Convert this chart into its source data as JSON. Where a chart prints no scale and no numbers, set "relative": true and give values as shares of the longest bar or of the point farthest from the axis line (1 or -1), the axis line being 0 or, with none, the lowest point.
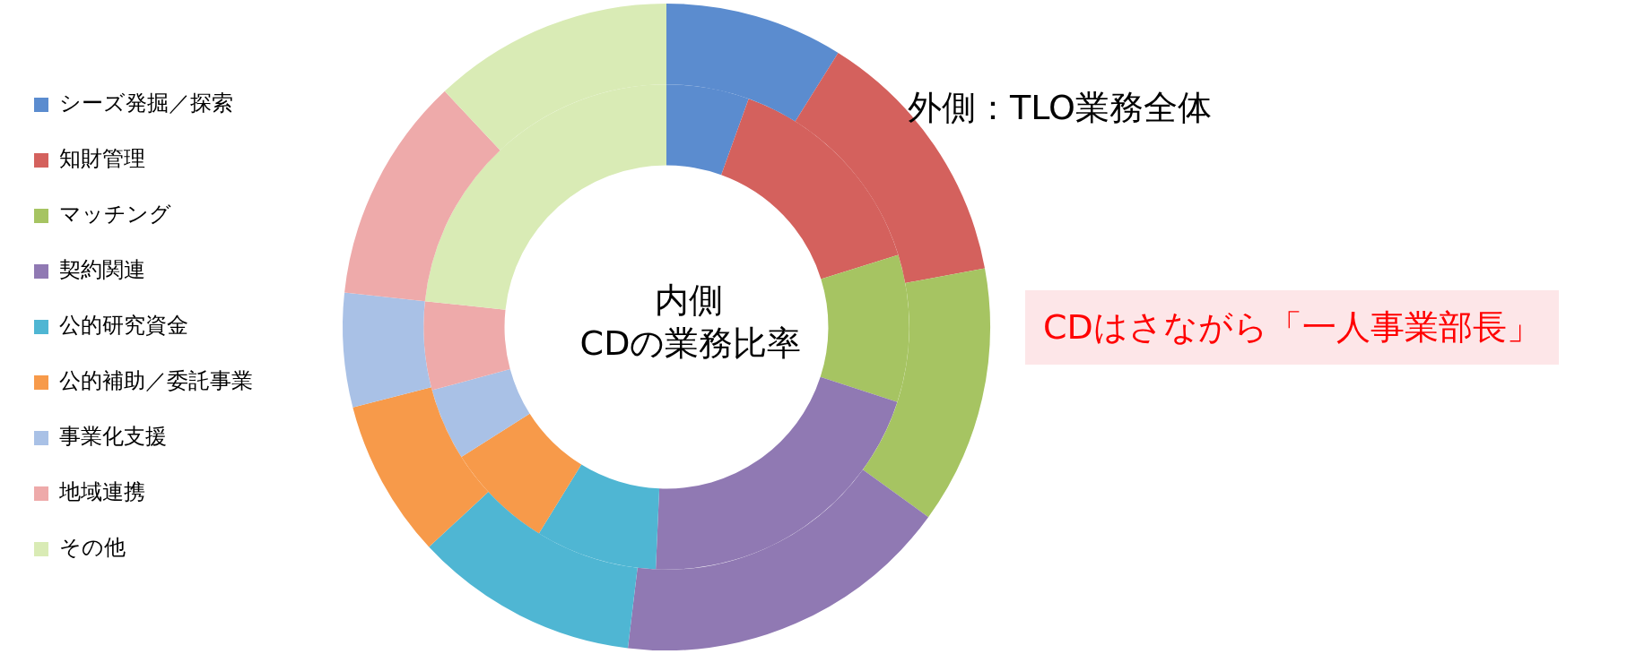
{
  "chart_data": {
    "type": "donut",
    "relative": true,
    "categories": [
      "シーズ発掘／探索",
      "知財管理",
      "マッチング",
      "契約関連",
      "公的研究資金",
      "公的補助／委託事業",
      "事業化支援",
      "地域連携",
      "その他"
    ],
    "series": [
      {
        "values": [
          8.9,
          13.2,
          12.9,
          16.9,
          11.2,
          7.9,
          5.7,
          11.3,
          12.0
        ],
        "colors": [
          "#5b8ccf",
          "#d4615d",
          "#a6c462",
          "#9079b3",
          "#4fb6d3",
          "#f79a4a",
          "#a9c1e6",
          "#eeaaaa",
          "#d9ebb5"
        ]
      },
      {
        "values": [
          5.5,
          14.7,
          9.8,
          20.7,
          8.1,
          7.2,
          4.8,
          5.9,
          23.3
        ],
        "colors": [
          "#5b8ccf",
          "#d4615d",
          "#a6c462",
          "#9079b3",
          "#4fb6d3",
          "#f79a4a",
          "#a9c1e6",
          "#eeaaaa",
          "#d9ebb5"
        ]
      }
    ],
    "legend": "left",
    "annotations": [
      "外側：TLO業務全体",
      "内側",
      "CDの業務比率",
      "CDはさながら「一人事業部長」"
    ]
  }
}
